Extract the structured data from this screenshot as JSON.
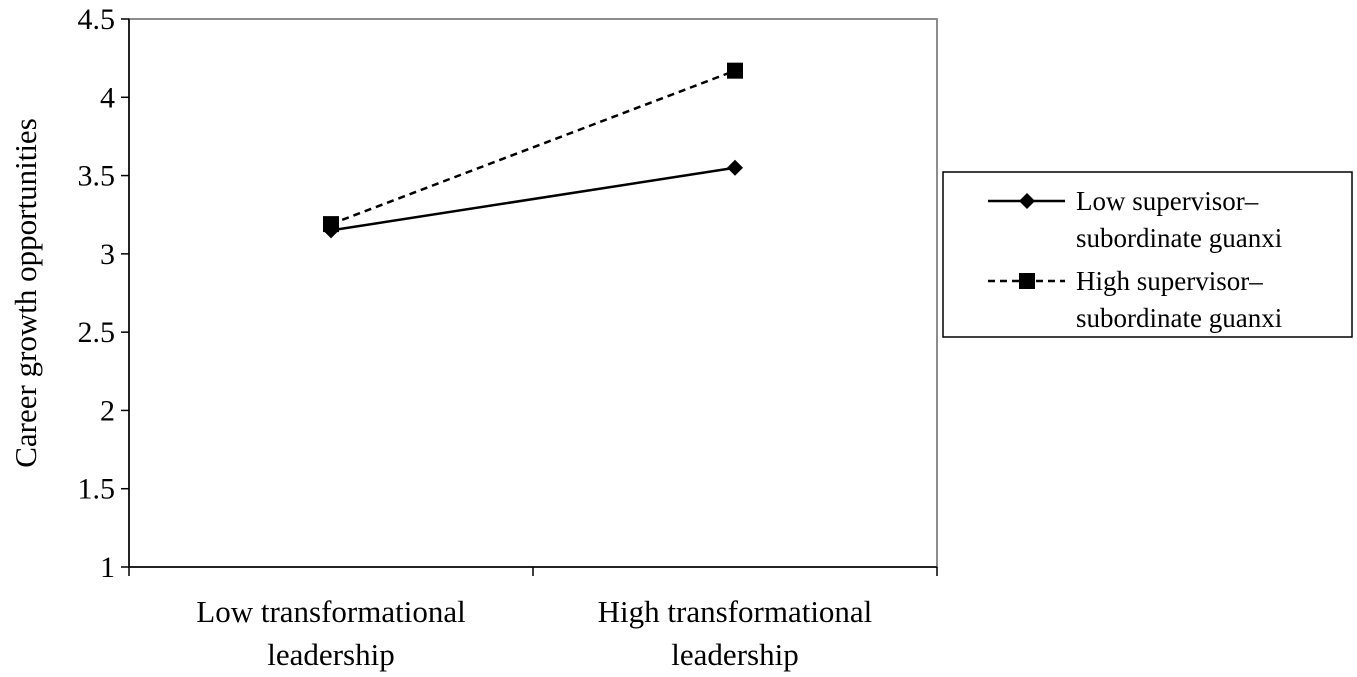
{
  "chart_data": {
    "type": "line",
    "categories": [
      [
        "Low transformational",
        "leadership"
      ],
      [
        "High transformational",
        "leadership"
      ]
    ],
    "ylabel": "Career growth opportunities",
    "xlabel": "",
    "ylim": [
      1,
      4.5
    ],
    "y_ticks": [
      "1",
      "1.5",
      "2",
      "2.5",
      "3",
      "3.5",
      "4",
      "4.5"
    ],
    "grid": false,
    "legend_position": "right",
    "series": [
      {
        "name": [
          "Low supervisor–",
          "subordinate guanxi"
        ],
        "values": [
          3.15,
          3.55
        ],
        "line_style": "solid",
        "marker": "diamond",
        "color": "#000000"
      },
      {
        "name": [
          "High supervisor–",
          "subordinate guanxi"
        ],
        "values": [
          3.19,
          4.17
        ],
        "line_style": "dashed",
        "marker": "square",
        "color": "#000000"
      }
    ]
  }
}
